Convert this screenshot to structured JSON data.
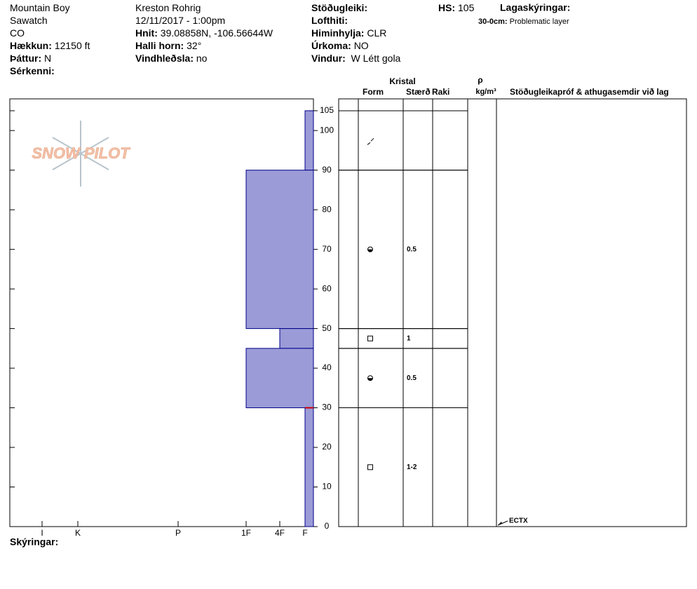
{
  "header": {
    "columns": [
      [
        {
          "value": "Mountain Boy"
        },
        {
          "value": "Sawatch"
        },
        {
          "value": "CO"
        },
        {
          "label": "Hækkun:",
          "value": "12150 ft"
        },
        {
          "label": "Þáttur:",
          "value": "N"
        },
        {
          "label": "Sérkenni:"
        }
      ],
      [
        {
          "value": "Kreston Rohrig"
        },
        {
          "value": "12/11/2017 - 1:00pm"
        },
        {
          "label": "Hnit:",
          "value": "39.08858N, -106.56644W"
        },
        {
          "label": "Halli horn:",
          "value": "32°"
        },
        {
          "label": "Vindhleðsla:",
          "value": "no"
        }
      ],
      [
        {
          "label": "Stöðugleiki:"
        },
        {
          "label": "Lofthiti:"
        },
        {
          "label": "Himinhylja:",
          "value": "CLR"
        },
        {
          "label": "Úrkoma:",
          "value": "NO"
        },
        {
          "label": "Vindur:",
          "value": " W Létt gola"
        }
      ],
      [
        {
          "label": "HS:",
          "value": "105"
        }
      ]
    ],
    "legend_title": "Lagaskýringar:",
    "legend_items": [
      {
        "label": "30-0cm:",
        "value": "Problematic layer"
      }
    ],
    "footer": "Skýringar:",
    "logo": "SNOW PILOT"
  },
  "chart_data": {
    "type": "snow-profile",
    "ylim": [
      0,
      108
    ],
    "yticks": [
      0,
      10,
      20,
      30,
      40,
      50,
      60,
      70,
      80,
      90,
      100,
      105
    ],
    "xticks": [
      {
        "value": 6,
        "label": "I"
      },
      {
        "value": 5,
        "label": "K"
      },
      {
        "value": 4,
        "label": "P"
      },
      {
        "value": 3,
        "label": "1F"
      },
      {
        "value": 2,
        "label": "4F"
      },
      {
        "value": 1,
        "label": "F"
      }
    ],
    "columns": {
      "crystal": "Kristal",
      "form": "Form",
      "size": "Stærð",
      "moisture": "Raki",
      "rho": "ρ",
      "density": "kg/m³",
      "tests": "Stöðugleikapróf & athugasemdir við lag"
    },
    "layers": [
      {
        "top": 105,
        "bottom": 90,
        "hardness": 1,
        "size": null
      },
      {
        "top": 90,
        "bottom": 50,
        "hardness": 3,
        "size": 0.5
      },
      {
        "top": 50,
        "bottom": 45,
        "hardness": 2,
        "size": 1
      },
      {
        "top": 45,
        "bottom": 30,
        "hardness": 3,
        "size": 0.5
      },
      {
        "top": 30,
        "bottom": 0,
        "hardness": 1,
        "size": "1-2"
      }
    ],
    "highlight": 30,
    "tests": [
      {
        "height": 0,
        "label": "ECTX"
      }
    ],
    "color": "#9b9bd7"
  }
}
